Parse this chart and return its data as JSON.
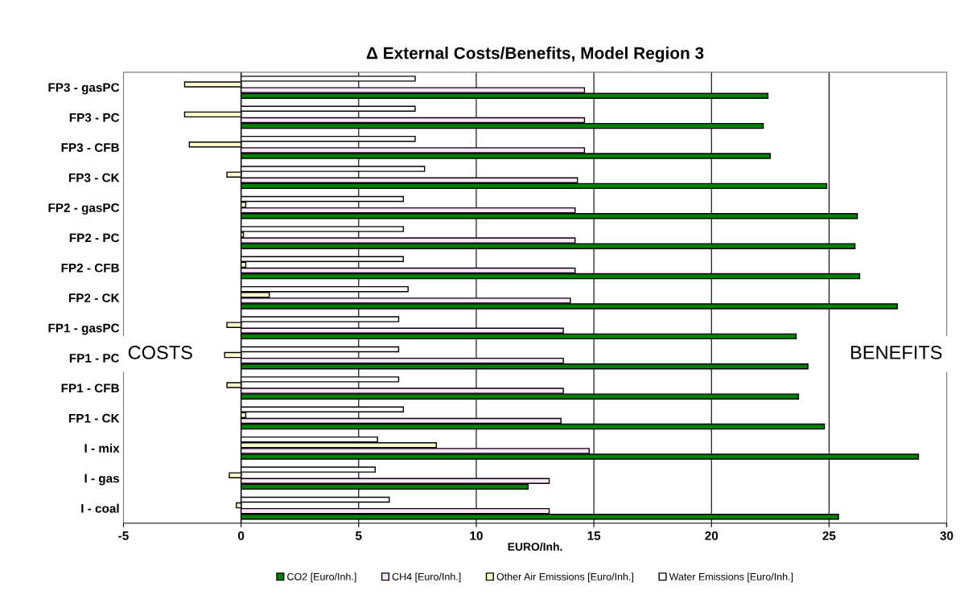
{
  "chart_data": {
    "type": "bar",
    "orientation": "horizontal",
    "title": "Δ External Costs/Benefits, Model Region 3",
    "xlabel": "EURO/Inh.",
    "categories": [
      "FP3 - gasPC",
      "FP3 - PC",
      "FP3 - CFB",
      "FP3 - CK",
      "FP2 - gasPC",
      "FP2 - PC",
      "FP2 - CFB",
      "FP2 - CK",
      "FP1 - gasPC",
      "FP1 - PC",
      "FP1 - CFB",
      "FP1 - CK",
      "I - mix",
      "I - gas",
      "I - coal"
    ],
    "series": [
      {
        "name": "CO2 [Euro/Inh.]",
        "color": "#008000",
        "values": [
          22.4,
          22.2,
          22.5,
          24.9,
          26.2,
          26.1,
          26.3,
          27.9,
          23.6,
          24.1,
          23.7,
          24.8,
          28.8,
          12.2,
          25.4
        ]
      },
      {
        "name": "CH4 [Euro/Inh.]",
        "color": "#ffe5ff",
        "values": [
          14.6,
          14.6,
          14.6,
          14.3,
          14.2,
          14.2,
          14.2,
          14.0,
          13.7,
          13.7,
          13.7,
          13.6,
          14.8,
          13.1,
          13.1
        ]
      },
      {
        "name": "Other Air Emissions [Euro/Inh.]",
        "color": "#ffffcc",
        "values": [
          -2.4,
          -2.4,
          -2.2,
          -0.6,
          0.2,
          0.1,
          0.2,
          1.2,
          -0.6,
          -0.7,
          -0.6,
          0.2,
          8.3,
          -0.5,
          -0.2
        ]
      },
      {
        "name": "Water Emissions [Euro/Inh.]",
        "color": "#ffffff",
        "values": [
          7.4,
          7.4,
          7.4,
          7.8,
          6.9,
          6.9,
          6.9,
          7.1,
          6.7,
          6.7,
          6.7,
          6.9,
          5.8,
          5.7,
          6.3
        ]
      }
    ],
    "xlim": [
      -5,
      30
    ],
    "xticks": [
      -5,
      0,
      5,
      10,
      15,
      20,
      25,
      30
    ],
    "grid": "x",
    "legend": "bottom",
    "annotations": [
      "COSTS",
      "BENEFITS"
    ]
  }
}
